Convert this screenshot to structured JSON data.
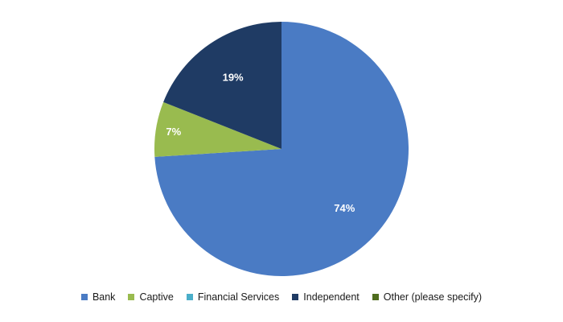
{
  "chart_data": {
    "type": "pie",
    "title": "",
    "slices": [
      {
        "label": "Bank",
        "value": 74,
        "display": "74%",
        "color": "#4a7bc4"
      },
      {
        "label": "Captive",
        "value": 7,
        "display": "7%",
        "color": "#99bb4f"
      },
      {
        "label": "Financial Services",
        "value": 0,
        "display": "",
        "color": "#4aaec9"
      },
      {
        "label": "Independent",
        "value": 19,
        "display": "19%",
        "color": "#1f3b64"
      },
      {
        "label": "Other (please specify)",
        "value": 0,
        "display": "",
        "color": "#4f6d1e"
      }
    ],
    "start_angle_deg": 0,
    "direction": "clockwise",
    "legend_position": "bottom"
  }
}
